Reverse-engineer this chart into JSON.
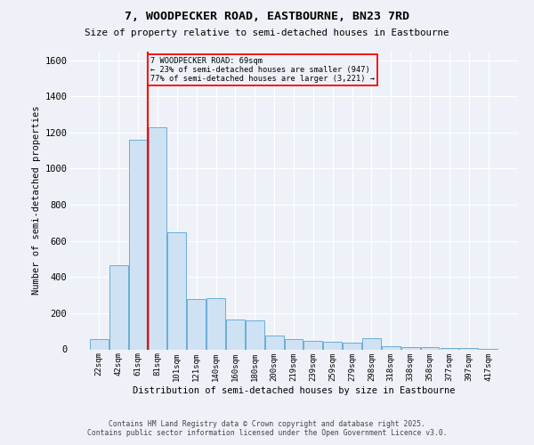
{
  "title": "7, WOODPECKER ROAD, EASTBOURNE, BN23 7RD",
  "subtitle": "Size of property relative to semi-detached houses in Eastbourne",
  "xlabel": "Distribution of semi-detached houses by size in Eastbourne",
  "ylabel": "Number of semi-detached properties",
  "property_label": "7 WOODPECKER ROAD: 69sqm",
  "pct_smaller": 23,
  "pct_larger": 77,
  "count_smaller": 947,
  "count_larger": 3221,
  "bar_color": "#cfe2f3",
  "bar_edge_color": "#6aadd5",
  "vline_color": "red",
  "annotation_box_color": "red",
  "categories": [
    "22sqm",
    "42sqm",
    "61sqm",
    "81sqm",
    "101sqm",
    "121sqm",
    "140sqm",
    "160sqm",
    "180sqm",
    "200sqm",
    "219sqm",
    "239sqm",
    "259sqm",
    "279sqm",
    "298sqm",
    "318sqm",
    "338sqm",
    "358sqm",
    "377sqm",
    "397sqm",
    "417sqm"
  ],
  "values": [
    55,
    465,
    1160,
    1230,
    650,
    280,
    285,
    165,
    160,
    75,
    55,
    45,
    40,
    35,
    60,
    15,
    10,
    10,
    8,
    5,
    3
  ],
  "ylim": [
    0,
    1650
  ],
  "yticks": [
    0,
    200,
    400,
    600,
    800,
    1000,
    1200,
    1400,
    1600
  ],
  "vline_x": 2.5,
  "footer1": "Contains HM Land Registry data © Crown copyright and database right 2025.",
  "footer2": "Contains public sector information licensed under the Open Government Licence v3.0.",
  "background_color": "#eef2f8"
}
